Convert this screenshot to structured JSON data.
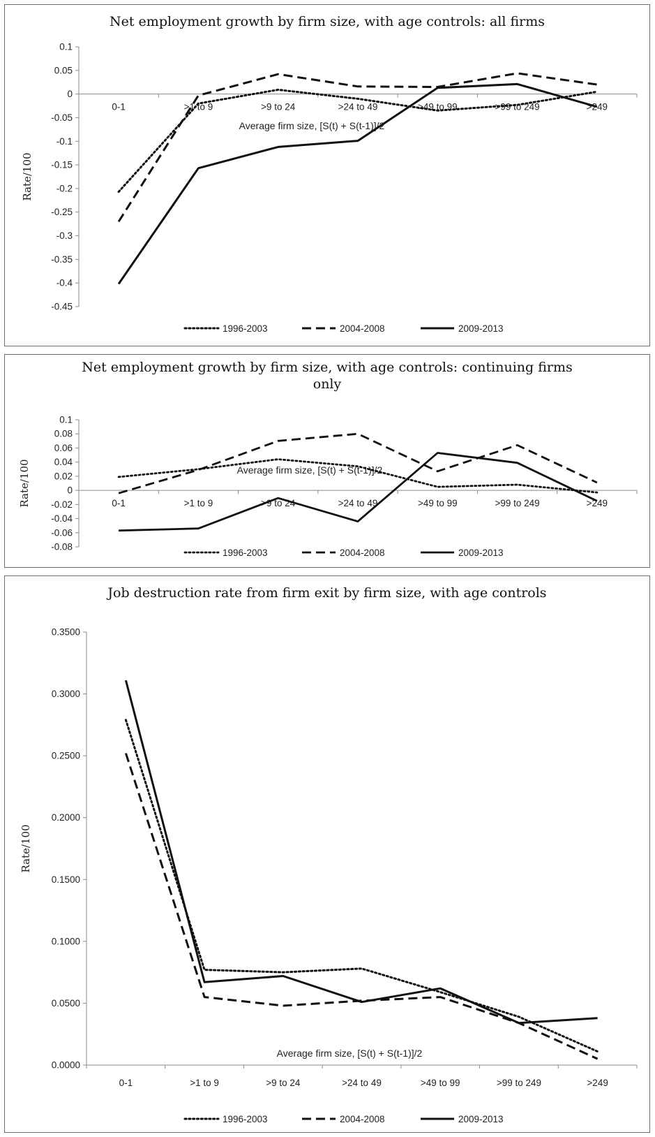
{
  "chart_data": [
    {
      "type": "line",
      "title": "Net employment growth by firm size, with age controls: all firms",
      "xlabel": "Average firm size, [S(t) + S(t-1)]/2",
      "ylabel": "Rate/100",
      "categories": [
        "0-1",
        ">1 to 9",
        ">9 to 24",
        ">24 to 49",
        ">49 to 99",
        ">99 to 249",
        ">249"
      ],
      "ylim": [
        -0.45,
        0.1
      ],
      "yticks": [
        "0.1",
        "0.05",
        "0",
        "-0.05",
        "-0.1",
        "-0.15",
        "-0.2",
        "-0.25",
        "-0.3",
        "-0.35",
        "-0.4",
        "-0.45"
      ],
      "grid": false,
      "legend_position": "bottom",
      "series": [
        {
          "name": "1996-2003",
          "style": "dotted",
          "values": [
            -0.207,
            -0.02,
            0.009,
            -0.01,
            -0.035,
            -0.023,
            0.005
          ]
        },
        {
          "name": "2004-2008",
          "style": "dashed",
          "values": [
            -0.27,
            -0.003,
            0.042,
            0.016,
            0.015,
            0.044,
            0.02
          ]
        },
        {
          "name": "2009-2013",
          "style": "solid",
          "values": [
            -0.402,
            -0.157,
            -0.112,
            -0.099,
            0.013,
            0.021,
            -0.027
          ]
        }
      ]
    },
    {
      "type": "line",
      "title": "Net employment growth by firm size, with age controls: continuing firms only",
      "title_lines": [
        "Net employment growth by firm size, with age controls: continuing firms",
        "only"
      ],
      "xlabel": "Average firm size, [S(t) + S(t-1)]/2",
      "ylabel": "Rate/100",
      "categories": [
        "0-1",
        ">1 to 9",
        ">9 to 24",
        ">24 to 49",
        ">49 to 99",
        ">99 to 249",
        ">249"
      ],
      "ylim": [
        -0.08,
        0.1
      ],
      "yticks": [
        "0.1",
        "0.08",
        "0.06",
        "0.04",
        "0.02",
        "0",
        "-0.02",
        "-0.04",
        "-0.06",
        "-0.08"
      ],
      "grid": false,
      "legend_position": "bottom",
      "series": [
        {
          "name": "1996-2003",
          "style": "dotted",
          "values": [
            0.019,
            0.03,
            0.044,
            0.034,
            0.005,
            0.008,
            -0.003
          ]
        },
        {
          "name": "2004-2008",
          "style": "dashed",
          "values": [
            -0.004,
            0.029,
            0.07,
            0.08,
            0.027,
            0.064,
            0.011
          ]
        },
        {
          "name": "2009-2013",
          "style": "solid",
          "values": [
            -0.057,
            -0.054,
            -0.011,
            -0.044,
            0.053,
            0.039,
            -0.015
          ]
        }
      ]
    },
    {
      "type": "line",
      "title": "Job destruction rate from firm exit by firm size, with age controls",
      "xlabel": "Average firm size, [S(t) + S(t-1)]/2",
      "ylabel": "Rate/100",
      "categories": [
        "0-1",
        ">1 to 9",
        ">9 to 24",
        ">24 to 49",
        ">49 to 99",
        ">99 to 249",
        ">249"
      ],
      "ylim": [
        0,
        0.35
      ],
      "yticks": [
        "0.3500",
        "0.3000",
        "0.2500",
        "0.2000",
        "0.1500",
        "0.1000",
        "0.0500",
        "0.0000"
      ],
      "grid": false,
      "legend_position": "bottom",
      "series": [
        {
          "name": "1996-2003",
          "style": "dotted",
          "values": [
            0.279,
            0.077,
            0.075,
            0.078,
            0.059,
            0.039,
            0.011
          ]
        },
        {
          "name": "2004-2008",
          "style": "dashed",
          "values": [
            0.252,
            0.055,
            0.048,
            0.052,
            0.055,
            0.034,
            0.005
          ]
        },
        {
          "name": "2009-2013",
          "style": "solid",
          "values": [
            0.311,
            0.067,
            0.072,
            0.051,
            0.062,
            0.034,
            0.038
          ]
        }
      ]
    }
  ]
}
